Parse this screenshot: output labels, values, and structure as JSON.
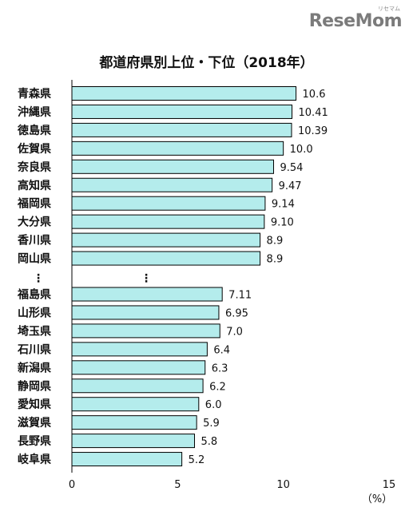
{
  "logo": {
    "text": "ReseMom",
    "ruby": "リセマム"
  },
  "chart_data": {
    "type": "bar",
    "orientation": "horizontal",
    "title": "都道府県別上位・下位（2018年）",
    "unit": "（%）",
    "xlim": [
      0,
      15
    ],
    "xticks": [
      "0",
      "5",
      "10",
      "15"
    ],
    "gap_marker": "⋮",
    "categories_top": [
      "青森県",
      "沖縄県",
      "徳島県",
      "佐賀県",
      "奈良県",
      "高知県",
      "福岡県",
      "大分県",
      "香川県",
      "岡山県"
    ],
    "values_top": [
      10.6,
      10.41,
      10.39,
      10.0,
      9.54,
      9.47,
      9.14,
      9.1,
      8.9,
      8.9
    ],
    "labels_top": [
      "10.6",
      "10.41",
      "10.39",
      "10.0",
      "9.54",
      "9.47",
      "9.14",
      "9.10",
      "8.9",
      "8.9"
    ],
    "categories_bottom": [
      "福島県",
      "山形県",
      "埼玉県",
      "石川県",
      "新潟県",
      "静岡県",
      "愛知県",
      "滋賀県",
      "長野県",
      "岐阜県"
    ],
    "values_bottom": [
      7.11,
      6.95,
      7.0,
      6.4,
      6.3,
      6.2,
      6.0,
      5.9,
      5.8,
      5.2
    ],
    "labels_bottom": [
      "7.11",
      "6.95",
      "7.0",
      "6.4",
      "6.3",
      "6.2",
      "6.0",
      "5.9",
      "5.8",
      "5.2"
    ],
    "grid": false,
    "legend": "none",
    "colors": {
      "bar_fill": "#b4ecec",
      "bar_stroke": "#000000"
    }
  }
}
